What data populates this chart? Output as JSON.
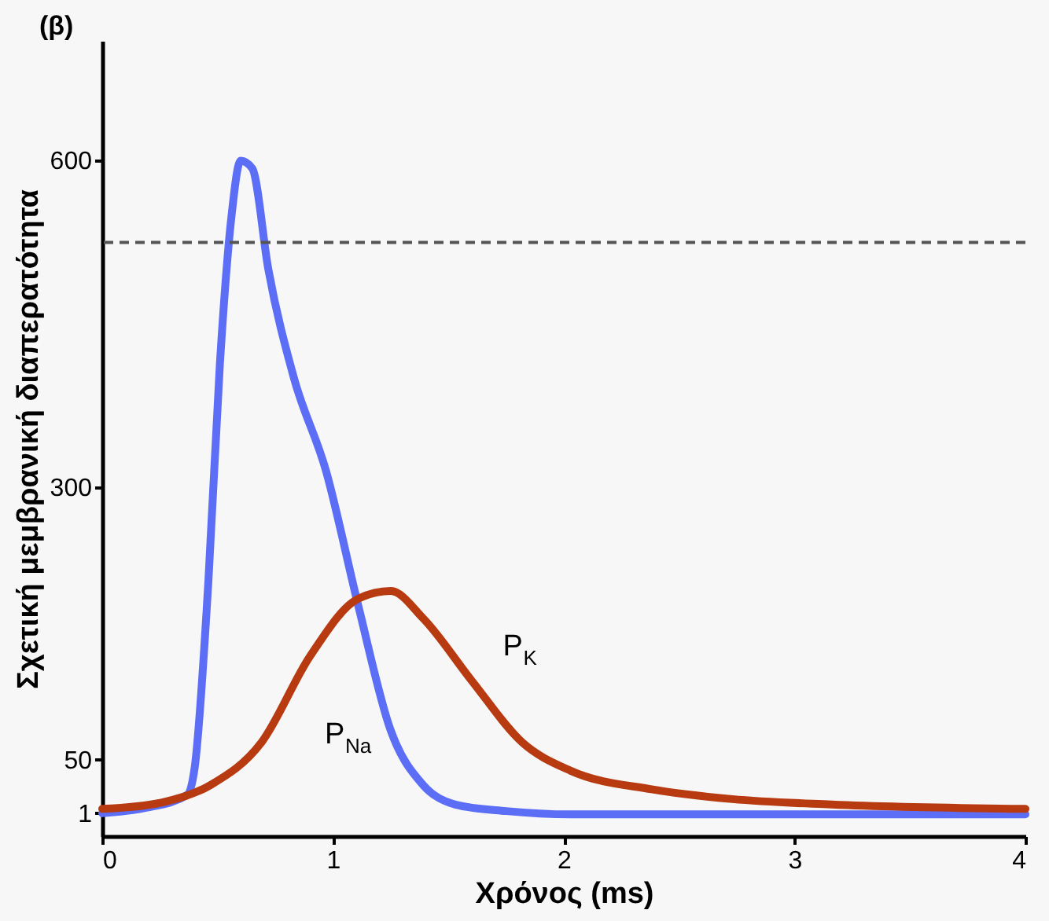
{
  "chart_data": {
    "type": "line",
    "title": "(β)",
    "xlabel": "Χρόνος (ms)",
    "ylabel": "Σχετική μεμβρανική διαπερατότητα",
    "xlim": [
      0,
      4
    ],
    "xticks": [
      0,
      1,
      2,
      3,
      4
    ],
    "ylim": [
      -20,
      710
    ],
    "yticks": [
      1,
      50,
      300,
      600
    ],
    "grid": false,
    "line_style": "solid",
    "marker": "none",
    "series": [
      {
        "name": "P$_{Na}$",
        "color": "#5b6ef5",
        "x": [
          0,
          0.19,
          0.37,
          0.4,
          0.46,
          0.51,
          0.56,
          0.6,
          0.65,
          0.72,
          0.83,
          0.97,
          1.11,
          1.25,
          1.39,
          1.53,
          1.75,
          2.03,
          4
        ],
        "values": [
          1,
          6,
          18,
          42,
          214,
          414,
          549,
          600,
          593,
          500,
          401,
          315,
          191,
          77,
          27,
          9,
          3,
          0,
          0
        ]
      },
      {
        "name": "P$_{K}$",
        "color": "#b83a10",
        "x": [
          0,
          0.26,
          0.47,
          0.69,
          0.9,
          1.11,
          1.25,
          1.39,
          1.6,
          1.82,
          2.03,
          2.38,
          2.73,
          3.16,
          4
        ],
        "values": [
          5,
          11,
          27,
          66,
          145,
          198,
          205,
          180,
          123,
          66,
          40,
          23,
          14,
          9,
          5
        ]
      }
    ],
    "ref_lines": [
      {
        "axis": "y",
        "value": 525,
        "color": "#555555",
        "line_style": "dashed"
      }
    ]
  }
}
